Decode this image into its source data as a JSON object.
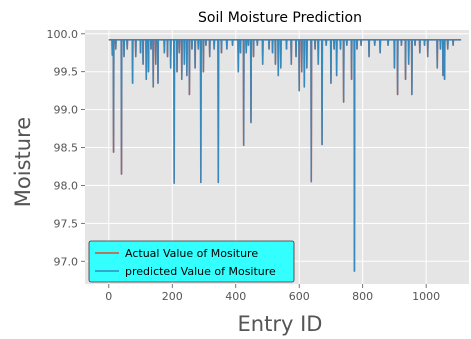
{
  "chart_data": {
    "type": "line",
    "title": "Soil Moisture Prediction",
    "xlabel": "Entry ID",
    "ylabel": "Moisture",
    "xlim": [
      -75,
      1135
    ],
    "ylim": [
      96.7,
      100.05
    ],
    "xticks": [
      0,
      200,
      400,
      600,
      800,
      1000
    ],
    "yticks": [
      97.0,
      97.5,
      98.0,
      98.5,
      99.0,
      99.5,
      100.0
    ],
    "ytick_labels": [
      "97.0",
      "97.5",
      "98.0",
      "98.5",
      "99.0",
      "99.5",
      "100.0"
    ],
    "grid": true,
    "background": "#e5e5e5",
    "legend_position": "lower-left",
    "legend_background": "#33ffff",
    "series": [
      {
        "name": "Actual Value of Mositure",
        "color": "#e24a33",
        "baseline": 99.92,
        "dips": [
          [
            11,
            99.72
          ],
          [
            15,
            98.44
          ],
          [
            22,
            99.8
          ],
          [
            40,
            98.15
          ],
          [
            48,
            99.7
          ],
          [
            58,
            99.8
          ],
          [
            75,
            99.35
          ],
          [
            85,
            99.7
          ],
          [
            100,
            99.75
          ],
          [
            108,
            99.6
          ],
          [
            118,
            99.4
          ],
          [
            125,
            99.5
          ],
          [
            133,
            99.8
          ],
          [
            140,
            99.3
          ],
          [
            148,
            99.6
          ],
          [
            155,
            99.35
          ],
          [
            175,
            99.75
          ],
          [
            185,
            99.7
          ],
          [
            195,
            99.55
          ],
          [
            206,
            98.03
          ],
          [
            215,
            99.5
          ],
          [
            222,
            99.75
          ],
          [
            230,
            99.4
          ],
          [
            238,
            99.6
          ],
          [
            246,
            99.45
          ],
          [
            254,
            99.2
          ],
          [
            262,
            99.8
          ],
          [
            272,
            99.55
          ],
          [
            282,
            99.8
          ],
          [
            290,
            98.04
          ],
          [
            298,
            99.5
          ],
          [
            306,
            99.85
          ],
          [
            318,
            99.7
          ],
          [
            332,
            99.8
          ],
          [
            345,
            98.04
          ],
          [
            355,
            99.75
          ],
          [
            372,
            99.8
          ],
          [
            390,
            99.85
          ],
          [
            408,
            99.5
          ],
          [
            415,
            99.75
          ],
          [
            425,
            98.53
          ],
          [
            433,
            99.75
          ],
          [
            440,
            99.85
          ],
          [
            448,
            98.83
          ],
          [
            456,
            99.7
          ],
          [
            468,
            99.85
          ],
          [
            485,
            99.6
          ],
          [
            505,
            99.8
          ],
          [
            516,
            99.75
          ],
          [
            525,
            99.6
          ],
          [
            534,
            99.45
          ],
          [
            542,
            99.55
          ],
          [
            560,
            99.8
          ],
          [
            575,
            99.6
          ],
          [
            590,
            99.7
          ],
          [
            600,
            99.25
          ],
          [
            608,
            99.5
          ],
          [
            616,
            99.3
          ],
          [
            624,
            99.55
          ],
          [
            638,
            98.05
          ],
          [
            650,
            99.8
          ],
          [
            660,
            99.6
          ],
          [
            672,
            98.54
          ],
          [
            685,
            99.85
          ],
          [
            700,
            99.35
          ],
          [
            710,
            99.8
          ],
          [
            718,
            99.45
          ],
          [
            730,
            99.8
          ],
          [
            740,
            99.1
          ],
          [
            750,
            99.85
          ],
          [
            765,
            99.4
          ],
          [
            774,
            96.87
          ],
          [
            782,
            99.8
          ],
          [
            795,
            99.85
          ],
          [
            820,
            99.7
          ],
          [
            838,
            99.85
          ],
          [
            855,
            99.75
          ],
          [
            880,
            99.85
          ],
          [
            900,
            99.55
          ],
          [
            910,
            99.2
          ],
          [
            922,
            99.85
          ],
          [
            935,
            99.4
          ],
          [
            945,
            99.6
          ],
          [
            955,
            99.2
          ],
          [
            965,
            99.85
          ],
          [
            980,
            99.75
          ],
          [
            995,
            99.85
          ],
          [
            1005,
            99.7
          ],
          [
            1035,
            99.55
          ],
          [
            1045,
            99.8
          ],
          [
            1053,
            99.45
          ],
          [
            1058,
            99.4
          ],
          [
            1068,
            99.8
          ],
          [
            1085,
            99.85
          ]
        ]
      },
      {
        "name": "predicted Value of Mositure",
        "color": "#348abd",
        "baseline": 99.92,
        "dips": [
          [
            11,
            99.72
          ],
          [
            15,
            98.44
          ],
          [
            22,
            99.8
          ],
          [
            40,
            98.15
          ],
          [
            48,
            99.7
          ],
          [
            58,
            99.8
          ],
          [
            75,
            99.35
          ],
          [
            85,
            99.7
          ],
          [
            100,
            99.75
          ],
          [
            108,
            99.6
          ],
          [
            118,
            99.4
          ],
          [
            125,
            99.5
          ],
          [
            133,
            99.8
          ],
          [
            140,
            99.3
          ],
          [
            148,
            99.6
          ],
          [
            155,
            99.35
          ],
          [
            175,
            99.75
          ],
          [
            185,
            99.7
          ],
          [
            195,
            99.55
          ],
          [
            206,
            98.03
          ],
          [
            215,
            99.5
          ],
          [
            222,
            99.75
          ],
          [
            230,
            99.4
          ],
          [
            238,
            99.6
          ],
          [
            246,
            99.45
          ],
          [
            254,
            99.2
          ],
          [
            262,
            99.8
          ],
          [
            272,
            99.55
          ],
          [
            282,
            99.8
          ],
          [
            290,
            98.04
          ],
          [
            298,
            99.5
          ],
          [
            306,
            99.85
          ],
          [
            318,
            99.7
          ],
          [
            332,
            99.8
          ],
          [
            345,
            98.04
          ],
          [
            355,
            99.75
          ],
          [
            372,
            99.8
          ],
          [
            390,
            99.85
          ],
          [
            408,
            99.5
          ],
          [
            415,
            99.75
          ],
          [
            425,
            98.53
          ],
          [
            433,
            99.75
          ],
          [
            440,
            99.85
          ],
          [
            448,
            98.83
          ],
          [
            456,
            99.7
          ],
          [
            468,
            99.85
          ],
          [
            485,
            99.6
          ],
          [
            505,
            99.8
          ],
          [
            516,
            99.75
          ],
          [
            525,
            99.6
          ],
          [
            534,
            99.45
          ],
          [
            542,
            99.55
          ],
          [
            560,
            99.8
          ],
          [
            575,
            99.6
          ],
          [
            590,
            99.7
          ],
          [
            600,
            99.25
          ],
          [
            608,
            99.5
          ],
          [
            616,
            99.3
          ],
          [
            624,
            99.55
          ],
          [
            638,
            98.05
          ],
          [
            650,
            99.8
          ],
          [
            660,
            99.6
          ],
          [
            672,
            98.54
          ],
          [
            685,
            99.85
          ],
          [
            700,
            99.35
          ],
          [
            710,
            99.8
          ],
          [
            718,
            99.45
          ],
          [
            730,
            99.8
          ],
          [
            740,
            99.1
          ],
          [
            750,
            99.85
          ],
          [
            765,
            99.4
          ],
          [
            774,
            96.87
          ],
          [
            782,
            99.8
          ],
          [
            795,
            99.85
          ],
          [
            820,
            99.7
          ],
          [
            838,
            99.85
          ],
          [
            855,
            99.75
          ],
          [
            880,
            99.85
          ],
          [
            900,
            99.55
          ],
          [
            910,
            99.2
          ],
          [
            922,
            99.85
          ],
          [
            935,
            99.4
          ],
          [
            945,
            99.6
          ],
          [
            955,
            99.2
          ],
          [
            965,
            99.85
          ],
          [
            980,
            99.75
          ],
          [
            995,
            99.85
          ],
          [
            1005,
            99.7
          ],
          [
            1035,
            99.55
          ],
          [
            1045,
            99.8
          ],
          [
            1053,
            99.45
          ],
          [
            1058,
            99.4
          ],
          [
            1068,
            99.8
          ],
          [
            1085,
            99.85
          ]
        ]
      }
    ],
    "x_end": 1110
  }
}
